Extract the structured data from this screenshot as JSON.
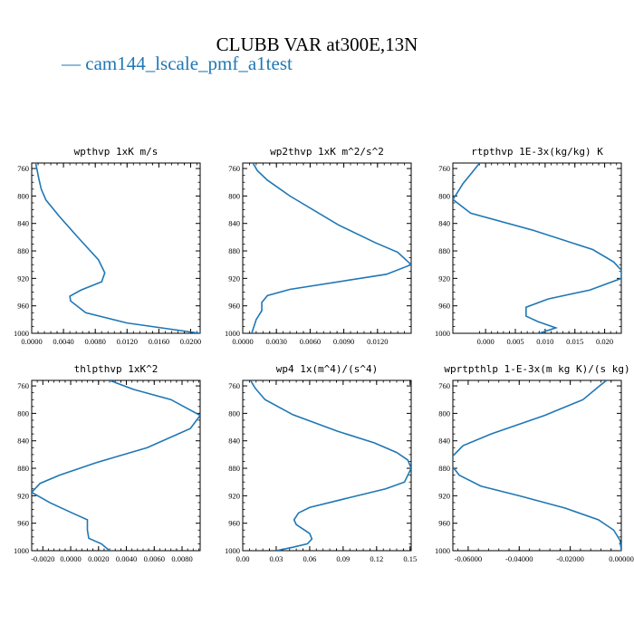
{
  "title": "CLUBB VAR at300E,13N",
  "legend": {
    "label": "— cam144_lscale_pmf_a1test",
    "color": "#1f77b4"
  },
  "chart_data": [
    {
      "type": "line",
      "title": "wpthvp  1xK m/s",
      "xlim": [
        0.0,
        0.0212
      ],
      "ylim": [
        1000,
        752
      ],
      "xticks": [
        0.0,
        0.004,
        0.008,
        0.012,
        0.016,
        0.02
      ],
      "xticklabels": [
        "0.0000",
        "0.0040",
        "0.0080",
        "0.0120",
        "0.0160",
        "0.0200"
      ],
      "yticks": [
        760,
        800,
        840,
        880,
        920,
        960,
        1000
      ],
      "series": [
        {
          "x": [
            0.0005,
            0.0009,
            0.0012,
            0.0018,
            0.0035,
            0.0058,
            0.0084,
            0.0092,
            0.0088,
            0.0062,
            0.0048,
            0.0049,
            0.0068,
            0.012,
            0.0212
          ],
          "y": [
            752,
            775,
            790,
            806,
            830,
            860,
            893,
            912,
            925,
            937,
            946,
            953,
            970,
            985,
            1000
          ]
        }
      ]
    },
    {
      "type": "line",
      "title": "wp2thvp  1xK m^2/s^2",
      "xlim": [
        0.0,
        0.015
      ],
      "ylim": [
        1000,
        752
      ],
      "xticks": [
        0.0,
        0.003,
        0.006,
        0.009,
        0.012
      ],
      "xticklabels": [
        "0.0000",
        "0.0030",
        "0.0060",
        "0.0090",
        "0.0120"
      ],
      "yticks": [
        760,
        800,
        840,
        880,
        920,
        960,
        1000
      ],
      "series": [
        {
          "x": [
            0.0009,
            0.0013,
            0.0022,
            0.0042,
            0.0085,
            0.0118,
            0.0138,
            0.015,
            0.0128,
            0.0042,
            0.0022,
            0.0017,
            0.0017,
            0.0012,
            0.0008
          ],
          "y": [
            752,
            763,
            777,
            800,
            842,
            868,
            882,
            900,
            914,
            936,
            945,
            955,
            967,
            980,
            1000
          ]
        }
      ]
    },
    {
      "type": "line",
      "title": "rtpthvp  1E-3x(kg/kg) K",
      "xlim": [
        -0.0055,
        0.0228
      ],
      "ylim": [
        1000,
        752
      ],
      "xticks": [
        0.0,
        0.005,
        0.01,
        0.015,
        0.02
      ],
      "xticklabels": [
        "0.000",
        "0.005",
        "0.010",
        "0.015",
        "0.020"
      ],
      "yticks": [
        760,
        800,
        840,
        880,
        920,
        960,
        1000
      ],
      "series": [
        {
          "x": [
            -0.001,
            -0.0022,
            -0.0038,
            -0.0048,
            -0.0055,
            -0.0025,
            0.008,
            0.018,
            0.0215,
            0.0228,
            0.0228,
            0.0175,
            0.0105,
            0.0068,
            0.0068,
            0.0088,
            0.0118,
            0.009
          ],
          "y": [
            752,
            765,
            782,
            796,
            805,
            825,
            850,
            878,
            896,
            908,
            920,
            937,
            950,
            962,
            975,
            983,
            992,
            1000
          ]
        }
      ]
    },
    {
      "type": "line",
      "title": "thlpthvp  1xK^2",
      "xlim": [
        -0.0028,
        0.0093
      ],
      "ylim": [
        1000,
        752
      ],
      "xticks": [
        -0.002,
        0.0,
        0.002,
        0.004,
        0.006,
        0.008
      ],
      "xticklabels": [
        "-0.0020",
        "0.0000",
        "0.0020",
        "0.0040",
        "0.0060",
        "0.0080"
      ],
      "yticks": [
        760,
        800,
        840,
        880,
        920,
        960,
        1000
      ],
      "series": [
        {
          "x": [
            0.0028,
            0.0045,
            0.0072,
            0.0093,
            0.0086,
            0.0055,
            0.0018,
            -0.0008,
            -0.0022,
            -0.0028,
            -0.0015,
            0.0001,
            0.0012,
            0.0012,
            0.0013,
            0.0022,
            0.0028
          ],
          "y": [
            752,
            765,
            780,
            803,
            822,
            850,
            872,
            890,
            902,
            915,
            930,
            945,
            955,
            970,
            982,
            990,
            1000
          ]
        }
      ]
    },
    {
      "type": "line",
      "title": "wp4  1x(m^4)/(s^4)",
      "xlim": [
        0.0,
        0.151
      ],
      "ylim": [
        1000,
        752
      ],
      "xticks": [
        0.0,
        0.03,
        0.06,
        0.09,
        0.12,
        0.15
      ],
      "xticklabels": [
        "0.00",
        "0.03",
        "0.06",
        "0.09",
        "0.12",
        "0.15"
      ],
      "yticks": [
        760,
        800,
        840,
        880,
        920,
        960,
        1000
      ],
      "series": [
        {
          "x": [
            0.007,
            0.011,
            0.02,
            0.045,
            0.085,
            0.118,
            0.138,
            0.148,
            0.151,
            0.145,
            0.128,
            0.095,
            0.06,
            0.05,
            0.046,
            0.048,
            0.06,
            0.062,
            0.058,
            0.045,
            0.03
          ],
          "y": [
            752,
            763,
            780,
            802,
            826,
            843,
            857,
            868,
            880,
            900,
            910,
            923,
            937,
            945,
            955,
            962,
            975,
            983,
            990,
            995,
            1000
          ]
        }
      ]
    },
    {
      "type": "line",
      "title": "wprtpthlp  1-E-3x(m kg K)/(s kg)",
      "xlim": [
        -0.066,
        0.0
      ],
      "ylim": [
        1000,
        752
      ],
      "xticks": [
        -0.06,
        -0.04,
        -0.02,
        0.0
      ],
      "xticklabels": [
        "-0.06000",
        "-0.04000",
        "-0.02000",
        "0.00000"
      ],
      "yticks": [
        760,
        800,
        840,
        880,
        920,
        960,
        1000
      ],
      "series": [
        {
          "x": [
            -0.0058,
            -0.0085,
            -0.015,
            -0.03,
            -0.051,
            -0.062,
            -0.066,
            -0.066,
            -0.0635,
            -0.055,
            -0.04,
            -0.022,
            -0.009,
            -0.003,
            -0.0005,
            0.0
          ],
          "y": [
            752,
            760,
            780,
            803,
            830,
            847,
            862,
            878,
            890,
            906,
            920,
            938,
            955,
            970,
            985,
            1000
          ]
        }
      ]
    }
  ]
}
